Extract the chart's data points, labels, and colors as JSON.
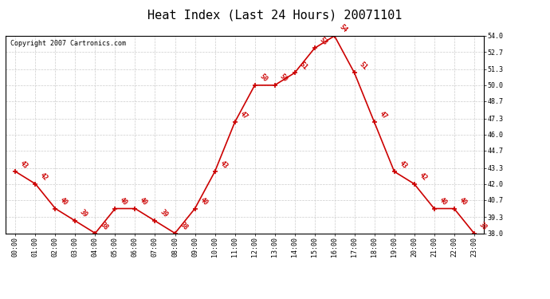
{
  "title": "Heat Index (Last 24 Hours) 20071101",
  "copyright": "Copyright 2007 Cartronics.com",
  "hours": [
    "00:00",
    "01:00",
    "02:00",
    "03:00",
    "04:00",
    "05:00",
    "06:00",
    "07:00",
    "08:00",
    "09:00",
    "10:00",
    "11:00",
    "12:00",
    "13:00",
    "14:00",
    "15:00",
    "16:00",
    "17:00",
    "18:00",
    "19:00",
    "20:00",
    "21:00",
    "22:00",
    "23:00"
  ],
  "values": [
    43,
    42,
    40,
    39,
    38,
    40,
    40,
    39,
    38,
    40,
    43,
    47,
    50,
    50,
    51,
    53,
    54,
    51,
    47,
    43,
    42,
    40,
    40,
    38
  ],
  "line_color": "#cc0000",
  "marker_color": "#cc0000",
  "bg_color": "#ffffff",
  "grid_color": "#cccccc",
  "ylim_min": 38.0,
  "ylim_max": 54.0,
  "ytick_values": [
    38.0,
    39.3,
    40.7,
    42.0,
    43.3,
    44.7,
    46.0,
    47.3,
    48.7,
    50.0,
    51.3,
    52.7,
    54.0
  ],
  "title_fontsize": 11,
  "label_fontsize": 6,
  "copyright_fontsize": 6,
  "tick_fontsize": 6
}
